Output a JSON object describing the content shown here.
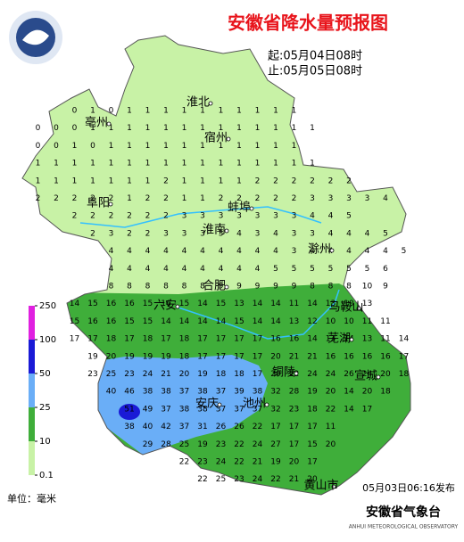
{
  "title": "安徽省降水量预报图",
  "valid_from": "起:05月04日08时",
  "valid_to": "止:05月05日08时",
  "issued": "05月03日06:16发布",
  "unit_label": "单位：毫米",
  "agency": "安徽省气象台",
  "agency_en": "ANHUI METEOROLOGICAL OBSERVATORY",
  "legend": {
    "ticks": [
      0.1,
      10,
      25,
      50,
      100,
      250
    ],
    "colors": [
      "#c8f2a6",
      "#3fae3a",
      "#6aaef7",
      "#1a1ad6",
      "#e020e0"
    ]
  },
  "cities": [
    "亳州",
    "淮北",
    "宿州",
    "阜阳",
    "蚌埠",
    "淮南",
    "滁州",
    "合肥",
    "六安",
    "马鞍山",
    "芜湖",
    "铜陵",
    "宣城",
    "安庆",
    "池州",
    "黄山市"
  ],
  "grid": [
    [
      null,
      null,
      null,
      0,
      1,
      0,
      1,
      1,
      1,
      1,
      1,
      1,
      1,
      1,
      1,
      1
    ],
    [
      null,
      0,
      0,
      0,
      1,
      1,
      1,
      1,
      1,
      1,
      1,
      1,
      1,
      1,
      1,
      1,
      1
    ],
    [
      null,
      0,
      0,
      1,
      0,
      1,
      1,
      1,
      1,
      1,
      1,
      1,
      1,
      1,
      1,
      1
    ],
    [
      null,
      1,
      1,
      1,
      1,
      1,
      1,
      1,
      1,
      1,
      1,
      1,
      1,
      1,
      1,
      1,
      1
    ],
    [
      null,
      1,
      1,
      1,
      1,
      1,
      1,
      1,
      2,
      1,
      1,
      1,
      1,
      2,
      2,
      2,
      2,
      2,
      2
    ],
    [
      null,
      2,
      2,
      2,
      2,
      2,
      1,
      2,
      2,
      1,
      1,
      2,
      2,
      2,
      2,
      2,
      3,
      3,
      3,
      3,
      4
    ],
    [
      null,
      null,
      null,
      2,
      2,
      2,
      2,
      2,
      2,
      3,
      3,
      3,
      3,
      3,
      3,
      3,
      4,
      4,
      5
    ],
    [
      null,
      null,
      null,
      null,
      2,
      3,
      2,
      2,
      3,
      3,
      3,
      3,
      4,
      3,
      4,
      3,
      3,
      4,
      4,
      4,
      5
    ],
    [
      null,
      null,
      null,
      null,
      null,
      4,
      4,
      4,
      4,
      4,
      4,
      4,
      4,
      4,
      4,
      3,
      4,
      4,
      4,
      4,
      4,
      5
    ],
    [
      null,
      null,
      null,
      null,
      null,
      4,
      4,
      4,
      4,
      4,
      4,
      4,
      4,
      4,
      5,
      5,
      5,
      5,
      5,
      5,
      6
    ],
    [
      null,
      null,
      null,
      null,
      null,
      8,
      8,
      8,
      8,
      8,
      8,
      9,
      9,
      9,
      9,
      9,
      8,
      8,
      8,
      10,
      9
    ],
    [
      null,
      null,
      null,
      14,
      15,
      16,
      16,
      15,
      16,
      15,
      14,
      15,
      13,
      14,
      14,
      11,
      14,
      13,
      10,
      13
    ],
    [
      null,
      null,
      null,
      15,
      16,
      16,
      15,
      15,
      14,
      14,
      14,
      14,
      15,
      14,
      14,
      13,
      12,
      10,
      10,
      11,
      11
    ],
    [
      null,
      null,
      null,
      17,
      17,
      18,
      17,
      18,
      17,
      18,
      17,
      17,
      17,
      17,
      16,
      16,
      14,
      13,
      14,
      13,
      11,
      14
    ],
    [
      null,
      null,
      null,
      null,
      19,
      20,
      19,
      19,
      19,
      18,
      17,
      17,
      17,
      17,
      20,
      21,
      21,
      16,
      16,
      16,
      16,
      17
    ],
    [
      null,
      null,
      null,
      null,
      23,
      25,
      23,
      24,
      21,
      20,
      19,
      18,
      18,
      17,
      20,
      22,
      24,
      24,
      26,
      24,
      20,
      18
    ],
    [
      null,
      null,
      null,
      null,
      null,
      40,
      46,
      38,
      38,
      37,
      38,
      37,
      39,
      38,
      32,
      28,
      19,
      20,
      14,
      20,
      18
    ],
    [
      null,
      null,
      null,
      null,
      null,
      null,
      51,
      49,
      37,
      38,
      38,
      37,
      37,
      37,
      32,
      23,
      18,
      22,
      14,
      17
    ],
    [
      null,
      null,
      null,
      null,
      null,
      null,
      38,
      40,
      42,
      37,
      31,
      26,
      26,
      22,
      17,
      17,
      17,
      11
    ],
    [
      null,
      null,
      null,
      null,
      null,
      null,
      null,
      29,
      28,
      25,
      19,
      23,
      22,
      24,
      27,
      17,
      15,
      20
    ],
    [
      null,
      null,
      null,
      null,
      null,
      null,
      null,
      null,
      null,
      22,
      23,
      24,
      22,
      21,
      19,
      20,
      17
    ],
    [
      null,
      null,
      null,
      null,
      null,
      null,
      null,
      null,
      null,
      null,
      22,
      25,
      23,
      24,
      22,
      21,
      20
    ]
  ]
}
